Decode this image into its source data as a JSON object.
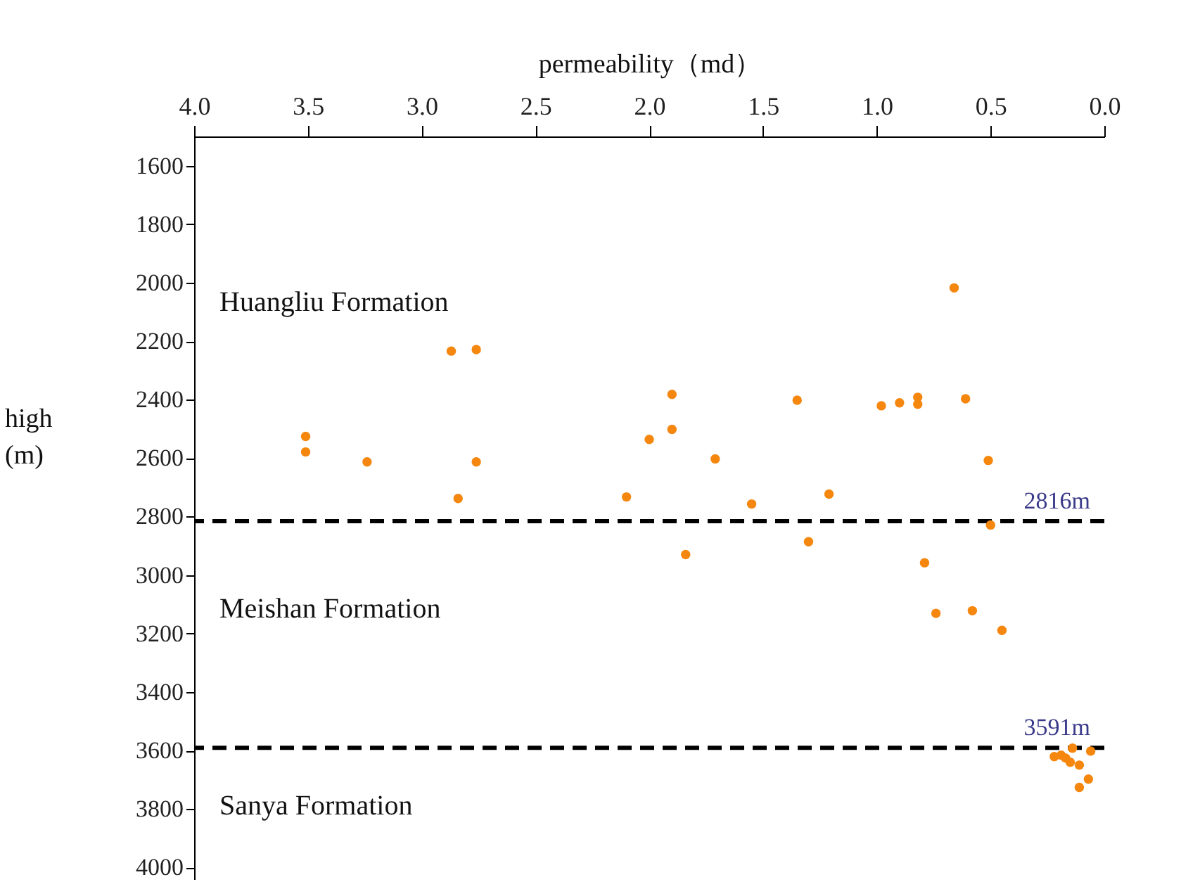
{
  "chart_data": {
    "type": "scatter",
    "xlabel": "permeability（md）",
    "ylabel": "high (m)",
    "xlim": [
      4.0,
      0.0
    ],
    "ylim": [
      4040,
      1500
    ],
    "xticks": [
      {
        "value": 4,
        "label": "4.0"
      },
      {
        "value": 3.5,
        "label": "3.5"
      },
      {
        "value": 3,
        "label": "3.0"
      },
      {
        "value": 2.5,
        "label": "2.5"
      },
      {
        "value": 2,
        "label": "2.0"
      },
      {
        "value": 1.5,
        "label": "1.5"
      },
      {
        "value": 1,
        "label": "1.0"
      },
      {
        "value": 0.5,
        "label": "0.5"
      },
      {
        "value": 0,
        "label": "0.0"
      }
    ],
    "yticks": [
      1600,
      1800,
      2000,
      2200,
      2400,
      2600,
      2800,
      3000,
      3200,
      3400,
      3600,
      3800,
      4000
    ],
    "grid": false,
    "legend": false,
    "marker": "circle",
    "series": [
      {
        "color": "#f5870f",
        "x": [
          2.87,
          2.76,
          3.51,
          3.51,
          3.24,
          2.76,
          2.84,
          1.9,
          2.0,
          1.9,
          1.71,
          1.35,
          2.1,
          1.55,
          1.21,
          1.84,
          1.3,
          0.98,
          0.66,
          0.9,
          0.82,
          0.82,
          0.61,
          0.51,
          0.5,
          0.79,
          0.74,
          0.58,
          0.45,
          0.22,
          0.19,
          0.17,
          0.14,
          0.06,
          0.11,
          0.07,
          0.11,
          0.15
        ],
        "values": [
          2234,
          2229,
          2526,
          2579,
          2613,
          2613,
          2738,
          2382,
          2536,
          2502,
          2603,
          2402,
          2733,
          2757,
          2723,
          2930,
          2886,
          2421,
          2018,
          2411,
          2392,
          2416,
          2397,
          2608,
          2829,
          2958,
          3131,
          3122,
          3189,
          3621,
          3616,
          3626,
          3592,
          3602,
          3650,
          3698,
          3726,
          3640
        ]
      }
    ],
    "ref_lines": [
      {
        "axis": "y",
        "value": 2816,
        "label": "2816m",
        "color": "#000000",
        "line_style": "dashed"
      },
      {
        "axis": "y",
        "value": 3591,
        "label": "3591m",
        "color": "#000000",
        "line_style": "dashed"
      }
    ],
    "annotations": [
      "Huangliu Formation",
      "Meishan Formation",
      "Sanya Formation"
    ]
  }
}
